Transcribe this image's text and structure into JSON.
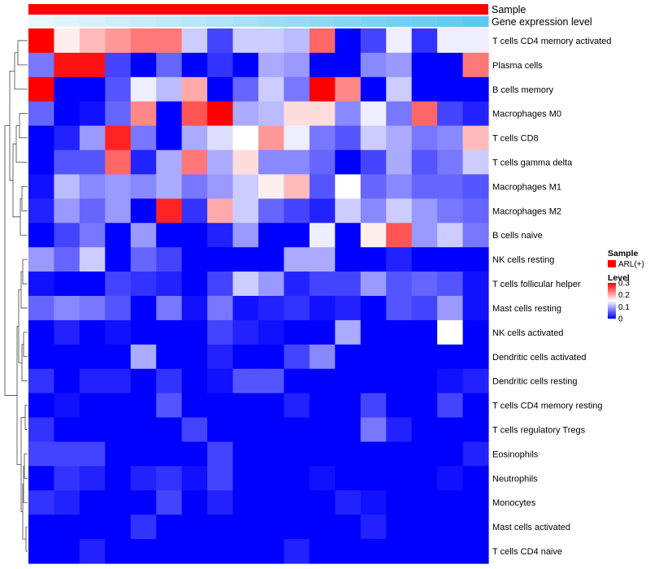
{
  "chart_data": {
    "type": "heatmap",
    "title": "",
    "annotations": [
      {
        "name": "Sample",
        "style": "solid",
        "color": "#ff0000"
      },
      {
        "name": "Gene expression level",
        "style": "gradient",
        "color_low": "#e8f7fc",
        "color_high": "#5bc8f0"
      }
    ],
    "rows": [
      "T cells CD4 memory activated",
      "Plasma cells",
      "B cells memory",
      "Macrophages M0",
      "T cells CD8",
      "T cells gamma delta",
      "Macrophages M1",
      "Macrophages M2",
      "B cells naive",
      "NK cells resting",
      "T cells follicular helper",
      "Mast cells resting",
      "NK cells activated",
      "Dendritic cells activated",
      "Dendritic cells resting",
      "T cells CD4 memory resting",
      "T cells regulatory  Tregs",
      "Eosinophils",
      "Neutrophils",
      "Monocytes",
      "Mast cells activated",
      "T cells CD4 naive"
    ],
    "n_columns": 18,
    "values": [
      [
        0.3,
        0.16,
        0.19,
        0.21,
        0.23,
        0.23,
        0.12,
        0.04,
        0.12,
        0.12,
        0.11,
        0.24,
        0.0,
        0.04,
        0.14,
        0.03,
        0.14,
        0.14
      ],
      [
        0.07,
        0.29,
        0.29,
        0.04,
        0.0,
        0.06,
        0.0,
        0.03,
        0.0,
        0.1,
        0.09,
        0.0,
        0.0,
        0.08,
        0.09,
        0.0,
        0.0,
        0.23
      ],
      [
        0.3,
        0.0,
        0.0,
        0.05,
        0.14,
        0.11,
        0.2,
        0.0,
        0.06,
        0.12,
        0.07,
        0.3,
        0.22,
        0.0,
        0.12,
        0.0,
        0.0,
        0.0
      ],
      [
        0.06,
        0.0,
        0.01,
        0.06,
        0.22,
        0.0,
        0.25,
        0.3,
        0.1,
        0.11,
        0.17,
        0.17,
        0.08,
        0.14,
        0.07,
        0.24,
        0.04,
        0.02
      ],
      [
        0.0,
        0.02,
        0.09,
        0.28,
        0.07,
        0.0,
        0.1,
        0.13,
        0.15,
        0.21,
        0.14,
        0.07,
        0.05,
        0.12,
        0.1,
        0.07,
        0.08,
        0.19
      ],
      [
        0.0,
        0.05,
        0.05,
        0.24,
        0.02,
        0.1,
        0.23,
        0.1,
        0.17,
        0.08,
        0.08,
        0.06,
        0.0,
        0.04,
        0.1,
        0.05,
        0.07,
        0.12
      ],
      [
        0.01,
        0.11,
        0.08,
        0.09,
        0.08,
        0.1,
        0.07,
        0.09,
        0.12,
        0.16,
        0.19,
        0.05,
        0.15,
        0.06,
        0.08,
        0.06,
        0.06,
        0.05
      ],
      [
        0.02,
        0.09,
        0.06,
        0.09,
        0.0,
        0.28,
        0.03,
        0.2,
        0.12,
        0.06,
        0.04,
        0.02,
        0.12,
        0.08,
        0.12,
        0.09,
        0.07,
        0.06
      ],
      [
        0.0,
        0.04,
        0.07,
        0.0,
        0.09,
        0.0,
        0.0,
        0.02,
        0.09,
        0.0,
        0.0,
        0.14,
        0.0,
        0.16,
        0.25,
        0.09,
        0.12,
        0.07
      ],
      [
        0.09,
        0.06,
        0.12,
        0.0,
        0.06,
        0.04,
        0.0,
        0.0,
        0.0,
        0.0,
        0.1,
        0.1,
        0.0,
        0.0,
        0.02,
        0.0,
        0.0,
        0.0
      ],
      [
        0.01,
        0.0,
        0.0,
        0.04,
        0.03,
        0.02,
        0.0,
        0.04,
        0.12,
        0.09,
        0.02,
        0.04,
        0.04,
        0.09,
        0.05,
        0.06,
        0.05,
        0.01
      ],
      [
        0.06,
        0.08,
        0.07,
        0.05,
        0.0,
        0.07,
        0.01,
        0.07,
        0.01,
        0.02,
        0.03,
        0.01,
        0.02,
        0.0,
        0.05,
        0.04,
        0.09,
        0.01
      ],
      [
        0.0,
        0.02,
        0.0,
        0.01,
        0.0,
        0.0,
        0.0,
        0.04,
        0.02,
        0.01,
        0.0,
        0.0,
        0.1,
        0.0,
        0.0,
        0.0,
        0.15,
        0.0
      ],
      [
        0.0,
        0.0,
        0.0,
        0.0,
        0.1,
        0.0,
        0.0,
        0.02,
        0.0,
        0.0,
        0.04,
        0.08,
        0.0,
        0.0,
        0.0,
        0.0,
        0.0,
        0.0
      ],
      [
        0.03,
        0.0,
        0.02,
        0.02,
        0.0,
        0.03,
        0.0,
        0.01,
        0.05,
        0.05,
        0.0,
        0.0,
        0.0,
        0.0,
        0.0,
        0.0,
        0.01,
        0.02
      ],
      [
        0.0,
        0.01,
        0.0,
        0.0,
        0.0,
        0.05,
        0.0,
        0.0,
        0.0,
        0.0,
        0.02,
        0.0,
        0.0,
        0.04,
        0.0,
        0.0,
        0.04,
        0.0
      ],
      [
        0.03,
        0.0,
        0.0,
        0.0,
        0.0,
        0.0,
        0.04,
        0.0,
        0.0,
        0.0,
        0.0,
        0.0,
        0.0,
        0.07,
        0.02,
        0.0,
        0.0,
        0.0
      ],
      [
        0.04,
        0.04,
        0.04,
        0.0,
        0.0,
        0.0,
        0.0,
        0.04,
        0.0,
        0.0,
        0.0,
        0.0,
        0.0,
        0.0,
        0.0,
        0.0,
        0.0,
        0.02
      ],
      [
        0.0,
        0.03,
        0.02,
        0.0,
        0.02,
        0.03,
        0.01,
        0.04,
        0.0,
        0.0,
        0.0,
        0.01,
        0.0,
        0.0,
        0.0,
        0.0,
        0.01,
        0.0
      ],
      [
        0.03,
        0.02,
        0.0,
        0.0,
        0.0,
        0.04,
        0.0,
        0.02,
        0.0,
        0.0,
        0.0,
        0.0,
        0.02,
        0.01,
        0.0,
        0.0,
        0.0,
        0.0
      ],
      [
        0.0,
        0.0,
        0.0,
        0.0,
        0.03,
        0.0,
        0.0,
        0.0,
        0.0,
        0.0,
        0.0,
        0.0,
        0.0,
        0.02,
        0.0,
        0.0,
        0.0,
        0.0
      ],
      [
        0.0,
        0.0,
        0.02,
        0.0,
        0.0,
        0.0,
        0.0,
        0.0,
        0.0,
        0.0,
        0.02,
        0.0,
        0.0,
        0.0,
        0.0,
        0.0,
        0.0,
        0.0
      ]
    ],
    "color_scale": {
      "low": "#0000ff",
      "mid": "#ffffff",
      "high": "#ff0000",
      "domain": [
        0,
        0.15,
        0.3
      ]
    },
    "legend": {
      "sample_title": "Sample",
      "sample_entries": [
        {
          "label": "ARL(+)",
          "color": "#ff0000"
        }
      ],
      "level_title": "Level",
      "level_ticks": [
        "0.3",
        "0.2",
        "0.1",
        "0"
      ],
      "level_tick_values": [
        0.3,
        0.2,
        0.1,
        0
      ]
    },
    "row_dendrogram": true
  }
}
